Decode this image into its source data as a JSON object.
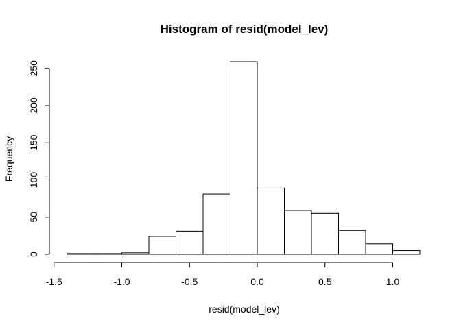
{
  "chart_data": {
    "type": "bar",
    "title": "Histogram of resid(model_lev)",
    "xlabel": "resid(model_lev)",
    "ylabel": "Frequency",
    "bins": [
      {
        "x0": -1.4,
        "x1": -1.2,
        "count": 1
      },
      {
        "x0": -1.2,
        "x1": -1.0,
        "count": 1
      },
      {
        "x0": -1.0,
        "x1": -0.8,
        "count": 2
      },
      {
        "x0": -0.8,
        "x1": -0.6,
        "count": 24
      },
      {
        "x0": -0.6,
        "x1": -0.4,
        "count": 31
      },
      {
        "x0": -0.4,
        "x1": -0.2,
        "count": 81
      },
      {
        "x0": -0.2,
        "x1": 0.0,
        "count": 259
      },
      {
        "x0": 0.0,
        "x1": 0.2,
        "count": 89
      },
      {
        "x0": 0.2,
        "x1": 0.4,
        "count": 59
      },
      {
        "x0": 0.4,
        "x1": 0.6,
        "count": 55
      },
      {
        "x0": 0.6,
        "x1": 0.8,
        "count": 32
      },
      {
        "x0": 0.8,
        "x1": 1.0,
        "count": 14
      },
      {
        "x0": 1.0,
        "x1": 1.2,
        "count": 5
      }
    ],
    "x_ticks": [
      {
        "value": -1.5,
        "label": "-1.5"
      },
      {
        "value": -1.0,
        "label": "-1.0"
      },
      {
        "value": -0.5,
        "label": "-0.5"
      },
      {
        "value": 0.0,
        "label": "0.0"
      },
      {
        "value": 0.5,
        "label": "0.5"
      },
      {
        "value": 1.0,
        "label": "1.0"
      }
    ],
    "y_ticks": [
      {
        "value": 0,
        "label": "0"
      },
      {
        "value": 50,
        "label": "50"
      },
      {
        "value": 100,
        "label": "100"
      },
      {
        "value": 150,
        "label": "150"
      },
      {
        "value": 200,
        "label": "200"
      },
      {
        "value": 250,
        "label": "250"
      }
    ],
    "xlim": [
      -1.5,
      1.2
    ],
    "ylim": [
      0,
      259
    ],
    "grid": false,
    "bar_fill": "#ffffff",
    "bar_stroke": "#000000"
  }
}
